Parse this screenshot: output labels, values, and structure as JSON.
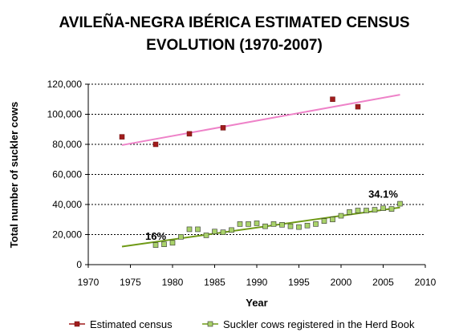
{
  "chart_data": {
    "type": "scatter",
    "title_line1": "AVILEÑA-NEGRA IBÉRICA ESTIMATED CENSUS",
    "title_line2": "EVOLUTION (1970-2007)",
    "xlabel": "Year",
    "ylabel": "Total number of suckler cows",
    "xlim": [
      1970,
      2010
    ],
    "ylim": [
      0,
      120000
    ],
    "xticks": [
      "1970",
      "1975",
      "1980",
      "1985",
      "1990",
      "1995",
      "2000",
      "2005",
      "2010"
    ],
    "yticks": [
      "0",
      "20,000",
      "40,000",
      "60,000",
      "80,000",
      "100,000",
      "120,000"
    ],
    "grid": "horizontal dashed",
    "legend_position": "bottom",
    "series": [
      {
        "name": "Estimated census",
        "marker": "square",
        "color": "#a01c1c",
        "trendline_color": "#ee82c8",
        "x": [
          1974,
          1978,
          1982,
          1986,
          1999,
          2002
        ],
        "y": [
          85000,
          80000,
          87000,
          91000,
          110000,
          105000
        ],
        "trendline": {
          "x": [
            1974,
            2007
          ],
          "y": [
            79500,
            113000
          ]
        }
      },
      {
        "name": "Suckler cows registered in the Herd Book",
        "marker": "square",
        "color": "#a9d26a",
        "trendline_color": "#6f9a16",
        "x": [
          1978,
          1979,
          1980,
          1981,
          1982,
          1983,
          1984,
          1985,
          1986,
          1987,
          1988,
          1989,
          1990,
          1991,
          1992,
          1993,
          1994,
          1995,
          1996,
          1997,
          1998,
          1999,
          2000,
          2001,
          2002,
          2003,
          2004,
          2005,
          2006,
          2007
        ],
        "y": [
          13000,
          13500,
          14500,
          18500,
          23500,
          23500,
          19500,
          22000,
          21500,
          23000,
          27000,
          27000,
          27500,
          25500,
          27000,
          26500,
          25500,
          25000,
          26000,
          27000,
          29000,
          30000,
          32500,
          35000,
          36000,
          36000,
          36500,
          37500,
          37000,
          40500
        ],
        "trendline": {
          "x": [
            1974,
            2007
          ],
          "y": [
            12000,
            38000
          ]
        }
      }
    ],
    "annotations": [
      {
        "text": "16%",
        "x": 1978,
        "y": 16500
      },
      {
        "text": "34.1%",
        "x": 2005,
        "y": 44500
      }
    ]
  }
}
